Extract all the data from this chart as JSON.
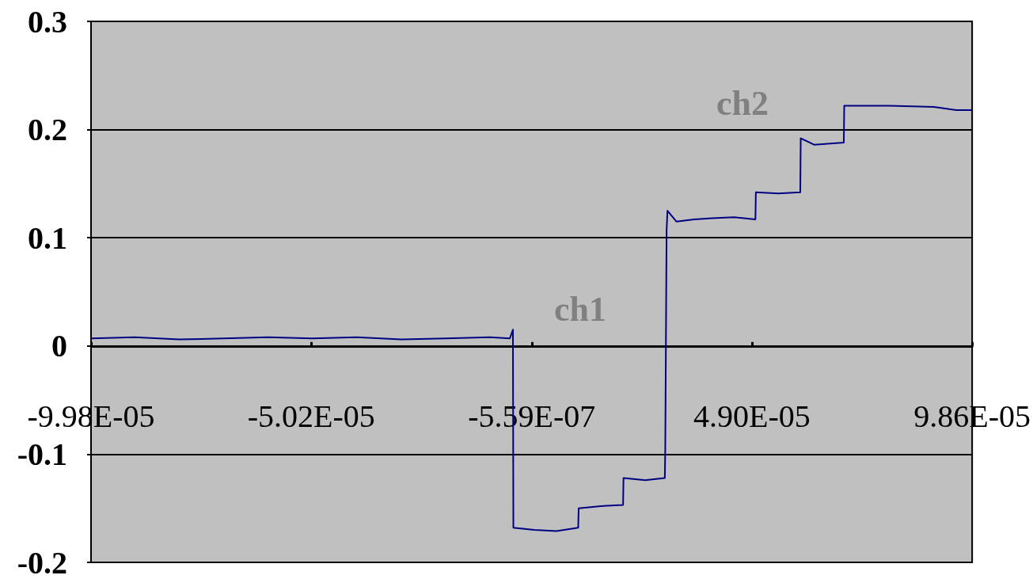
{
  "chart_data": {
    "type": "line",
    "x": [
      -9.98e-05,
      -9e-05,
      -8e-05,
      -7e-05,
      -6e-05,
      -5e-05,
      -4e-05,
      -3e-05,
      -2e-05,
      -1e-05,
      -5.5e-06,
      -4.8e-06,
      -4.7e-06,
      0,
      5e-06,
      9.9e-06,
      1e-05,
      1.5e-05,
      2e-05,
      2.01e-05,
      2.5e-05,
      2.94e-05,
      2.95e-05,
      2.98e-05,
      3e-05,
      3.2e-05,
      3.6e-05,
      4e-05,
      4.5e-05,
      4.98e-05,
      4.99e-05,
      5.5e-05,
      5.99e-05,
      6e-05,
      6.3e-05,
      6.97e-05,
      6.98e-05,
      8e-05,
      9e-05,
      9.5e-05,
      9.86e-05
    ],
    "series": [
      {
        "color": "#000080",
        "values": [
          0.007,
          0.008,
          0.006,
          0.007,
          0.008,
          0.007,
          0.008,
          0.006,
          0.007,
          0.008,
          0.007,
          0.015,
          -0.168,
          -0.17,
          -0.171,
          -0.168,
          -0.15,
          -0.148,
          -0.147,
          -0.122,
          -0.124,
          -0.122,
          -0.095,
          0.107,
          0.125,
          0.115,
          0.117,
          0.118,
          0.119,
          0.117,
          0.142,
          0.141,
          0.142,
          0.192,
          0.186,
          0.188,
          0.222,
          0.222,
          0.221,
          0.218,
          0.218
        ]
      }
    ],
    "xlim": [
      -9.98e-05,
      9.86e-05
    ],
    "xticks": [
      {
        "value": -9.98e-05,
        "label": "-9.98E-05"
      },
      {
        "value": -5.02e-05,
        "label": "-5.02E-05"
      },
      {
        "value": -5.59e-07,
        "label": "-5.59E-07"
      },
      {
        "value": 4.9e-05,
        "label": "4.90E-05"
      },
      {
        "value": 9.86e-05,
        "label": "9.86E-05"
      }
    ],
    "ylim": [
      -0.2,
      0.3
    ],
    "yticks": [
      -0.2,
      -0.1,
      0,
      0.1,
      0.2,
      0.3
    ],
    "grid": "y",
    "marker": "none",
    "line_style": "solid",
    "annotations": [
      "ch1",
      "ch2"
    ]
  }
}
